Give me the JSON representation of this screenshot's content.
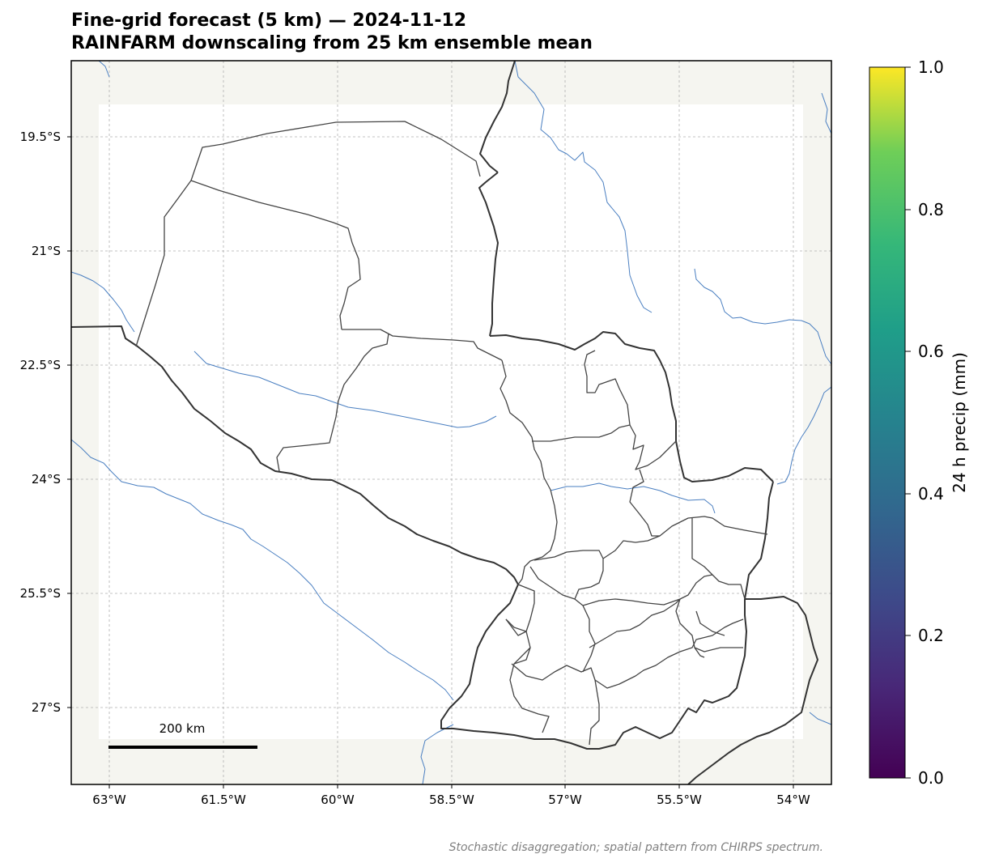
{
  "title_line1": "Fine-grid forecast (5 km) — 2024-11-12",
  "title_line2": "RAINFARM downscaling from 25 km ensemble mean",
  "lat_labels": [
    "19.5°S",
    "21°S",
    "22.5°S",
    "24°S",
    "25.5°S",
    "27°S"
  ],
  "lon_labels": [
    "63°W",
    "61.5°W",
    "60°W",
    "58.5°W",
    "57°W",
    "55.5°W",
    "54°W"
  ],
  "colorbar": {
    "label": "24 h precip (mm)",
    "ticks": [
      "0.0",
      "0.2",
      "0.4",
      "0.6",
      "0.8",
      "1.0"
    ],
    "colormap": "viridis",
    "range": [
      0.0,
      1.0
    ]
  },
  "scale_bar": {
    "label": "200 km"
  },
  "footnote": "Stochastic disaggregation; spatial pattern from CHIRPS spectrum.",
  "colors": {
    "land": "#f5f5f0",
    "data_field": "#ffffff",
    "rivers": "#4a7fc1",
    "borders": "#333333",
    "gridlines": "#b0b0b0"
  }
}
